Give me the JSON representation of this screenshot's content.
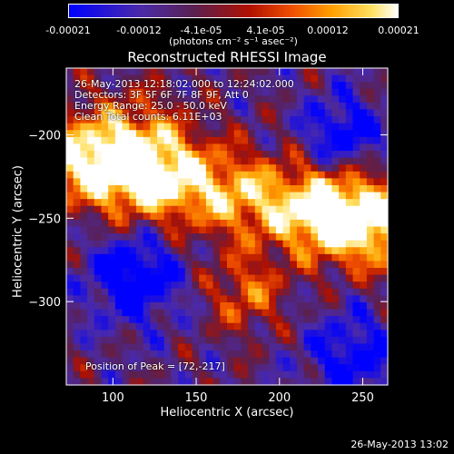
{
  "colorbar": {
    "ticks": [
      "-0.00021",
      "-0.00012",
      "-4.1e-05",
      "4.1e-05",
      "0.00012",
      "0.00021"
    ],
    "tick_values": [
      -0.00021,
      -0.00012,
      -4.1e-05,
      4.1e-05,
      0.00012,
      0.00021
    ],
    "range": [
      -0.00021,
      0.00021
    ],
    "unit_label": "(photons cm⁻² s⁻¹ asec⁻²)"
  },
  "chart_data": {
    "type": "heatmap",
    "title": "Reconstructed RHESSI Image",
    "xlabel": "Heliocentric X (arcsec)",
    "ylabel": "Heliocentric Y (arcsec)",
    "xlim": [
      72,
      265
    ],
    "ylim": [
      -350,
      -160
    ],
    "x_ticks": [
      100,
      150,
      200,
      250
    ],
    "y_ticks": [
      -200,
      -250,
      -300
    ],
    "grid": false,
    "colormap": "red-temperature with blue-purple negatives"
  },
  "info": {
    "line1": "26-May-2013 12:18:02.000 to 12:24:02.000",
    "line2": "Detectors: 3F 5F 6F 7F 8F 9F, Att 0",
    "line3": "Energy Range: 25.0 - 50.0 keV",
    "line4": "Clean     Total counts: 6.11E+03"
  },
  "peak_label": "Position of Peak = [72,-217]",
  "timestamp": "26-May-2013 13:02"
}
